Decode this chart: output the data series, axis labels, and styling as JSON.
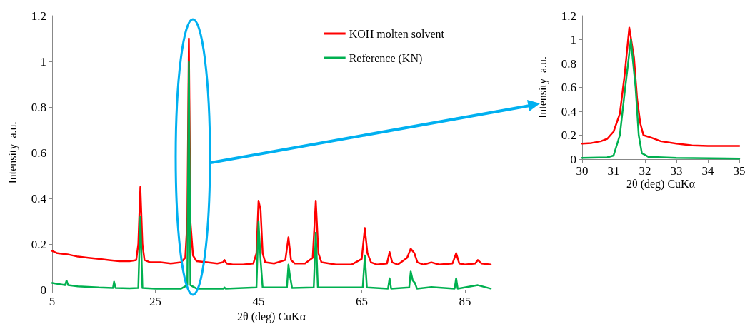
{
  "chart_data": [
    {
      "type": "line",
      "xlabel": "2θ (deg) CuKα",
      "ylabel": "Intensity  a.u.",
      "xlim": [
        5,
        90
      ],
      "xticks": [
        5,
        25,
        45,
        65,
        85
      ],
      "ylim": [
        0,
        1.2
      ],
      "yticks": [
        0,
        0.2,
        0.4,
        0.6,
        0.8,
        1,
        1.2
      ],
      "grid": false,
      "legend": "top right",
      "marker": "none",
      "line_style": "solid",
      "series": [
        {
          "name": "KOH molten solvent",
          "color": "#ff0000",
          "x": [
            5,
            6,
            8,
            10,
            12,
            14,
            16,
            18,
            20,
            21.3,
            21.7,
            22.1,
            22.5,
            22.9,
            24,
            26,
            28,
            30,
            30.8,
            31.2,
            31.5,
            31.8,
            32.3,
            33,
            35,
            37,
            38.1,
            38.4,
            38.8,
            40,
            42,
            44,
            44.6,
            45,
            45.4,
            45.8,
            46.3,
            48,
            50.2,
            50.8,
            51.3,
            52,
            54,
            55.5,
            56.1,
            56.6,
            57.2,
            60,
            63,
            65,
            65.6,
            66.1,
            66.8,
            68,
            69.9,
            70.4,
            70.9,
            72,
            73.8,
            74.5,
            75.2,
            75.8,
            77,
            78.5,
            80,
            82.6,
            83.3,
            83.9,
            85,
            87,
            87.5,
            88.2,
            90
          ],
          "values": [
            0.17,
            0.16,
            0.155,
            0.145,
            0.14,
            0.135,
            0.13,
            0.125,
            0.125,
            0.13,
            0.2,
            0.45,
            0.2,
            0.13,
            0.12,
            0.12,
            0.115,
            0.12,
            0.14,
            0.3,
            1.1,
            0.3,
            0.15,
            0.125,
            0.12,
            0.115,
            0.12,
            0.13,
            0.115,
            0.11,
            0.11,
            0.115,
            0.16,
            0.39,
            0.35,
            0.16,
            0.12,
            0.115,
            0.13,
            0.23,
            0.13,
            0.115,
            0.115,
            0.14,
            0.39,
            0.16,
            0.12,
            0.11,
            0.11,
            0.135,
            0.27,
            0.16,
            0.12,
            0.11,
            0.115,
            0.165,
            0.12,
            0.11,
            0.14,
            0.18,
            0.16,
            0.12,
            0.11,
            0.12,
            0.11,
            0.115,
            0.16,
            0.115,
            0.11,
            0.115,
            0.13,
            0.115,
            0.11
          ]
        },
        {
          "name": "Reference (KN)",
          "color": "#00b050",
          "x": [
            5,
            7.5,
            7.8,
            8.1,
            10,
            14,
            16.8,
            17,
            17.3,
            20,
            21.7,
            22.1,
            22.5,
            25,
            30,
            31.2,
            31.5,
            31.8,
            33,
            38.2,
            38.4,
            38.6,
            44.6,
            45,
            45.4,
            45.8,
            50.5,
            50.8,
            51.1,
            51.5,
            55.7,
            56.1,
            56.5,
            65.2,
            65.6,
            66,
            70.1,
            70.4,
            70.7,
            74.2,
            74.5,
            74.9,
            75.3,
            75.7,
            78.5,
            83,
            83.3,
            83.6,
            87.5,
            90
          ],
          "values": [
            0.03,
            0.02,
            0.04,
            0.02,
            0.015,
            0.01,
            0.008,
            0.035,
            0.008,
            0.006,
            0.008,
            0.32,
            0.008,
            0.005,
            0.005,
            0.02,
            1.0,
            0.02,
            0.005,
            0.005,
            0.01,
            0.005,
            0.01,
            0.3,
            0.13,
            0.01,
            0.01,
            0.11,
            0.06,
            0.008,
            0.01,
            0.25,
            0.01,
            0.01,
            0.15,
            0.01,
            0.005,
            0.05,
            0.005,
            0.01,
            0.08,
            0.04,
            0.03,
            0.005,
            0.012,
            0.005,
            0.05,
            0.005,
            0.02,
            0.005
          ]
        }
      ]
    },
    {
      "type": "line",
      "xlabel": "2θ (deg) CuKα",
      "ylabel": "Intensity  a.u.",
      "xlim": [
        30,
        35
      ],
      "xticks": [
        30,
        31,
        32,
        33,
        34,
        35
      ],
      "ylim": [
        0,
        1.2
      ],
      "yticks": [
        0,
        0.2,
        0.4,
        0.6,
        0.8,
        1,
        1.2
      ],
      "grid": false,
      "marker": "none",
      "line_style": "solid",
      "series": [
        {
          "color": "#ff0000",
          "x": [
            30,
            30.3,
            30.6,
            30.8,
            31,
            31.2,
            31.35,
            31.5,
            31.65,
            31.75,
            31.85,
            31.95,
            32.2,
            32.5,
            33,
            33.5,
            34,
            35
          ],
          "values": [
            0.13,
            0.135,
            0.15,
            0.17,
            0.23,
            0.38,
            0.7,
            1.1,
            0.85,
            0.5,
            0.3,
            0.2,
            0.18,
            0.15,
            0.13,
            0.115,
            0.11,
            0.11
          ]
        },
        {
          "color": "#00b050",
          "x": [
            30,
            30.8,
            31,
            31.2,
            31.35,
            31.55,
            31.7,
            31.8,
            31.9,
            32.1,
            33,
            35
          ],
          "values": [
            0.01,
            0.015,
            0.03,
            0.2,
            0.55,
            1.0,
            0.6,
            0.2,
            0.05,
            0.02,
            0.01,
            0.005
          ]
        }
      ]
    }
  ]
}
